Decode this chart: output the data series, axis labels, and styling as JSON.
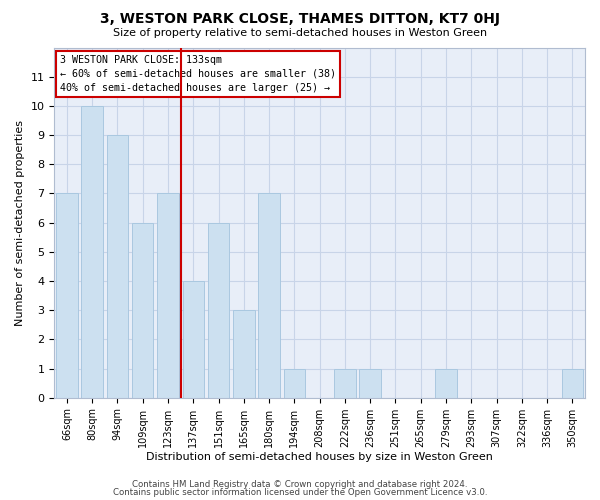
{
  "title": "3, WESTON PARK CLOSE, THAMES DITTON, KT7 0HJ",
  "subtitle": "Size of property relative to semi-detached houses in Weston Green",
  "xlabel": "Distribution of semi-detached houses by size in Weston Green",
  "ylabel": "Number of semi-detached properties",
  "categories": [
    "66sqm",
    "80sqm",
    "94sqm",
    "109sqm",
    "123sqm",
    "137sqm",
    "151sqm",
    "165sqm",
    "180sqm",
    "194sqm",
    "208sqm",
    "222sqm",
    "236sqm",
    "251sqm",
    "265sqm",
    "279sqm",
    "293sqm",
    "307sqm",
    "322sqm",
    "336sqm",
    "350sqm"
  ],
  "values": [
    7,
    10,
    9,
    6,
    7,
    4,
    6,
    3,
    7,
    1,
    0,
    1,
    1,
    0,
    0,
    1,
    0,
    0,
    0,
    0,
    1
  ],
  "bar_color": "#cce0f0",
  "bar_edge_color": "#aac8e0",
  "box_text_line1": "3 WESTON PARK CLOSE: 133sqm",
  "box_text_line2": "← 60% of semi-detached houses are smaller (38)",
  "box_text_line3": "40% of semi-detached houses are larger (25) →",
  "box_color": "white",
  "box_edge_color": "#cc0000",
  "ref_line_color": "#cc0000",
  "ylim": [
    0,
    12
  ],
  "yticks": [
    0,
    1,
    2,
    3,
    4,
    5,
    6,
    7,
    8,
    9,
    10,
    11
  ],
  "grid_color": "#c8d4e8",
  "background_color": "#ffffff",
  "plot_bg_color": "#e8eef8",
  "footer_line1": "Contains HM Land Registry data © Crown copyright and database right 2024.",
  "footer_line2": "Contains public sector information licensed under the Open Government Licence v3.0."
}
